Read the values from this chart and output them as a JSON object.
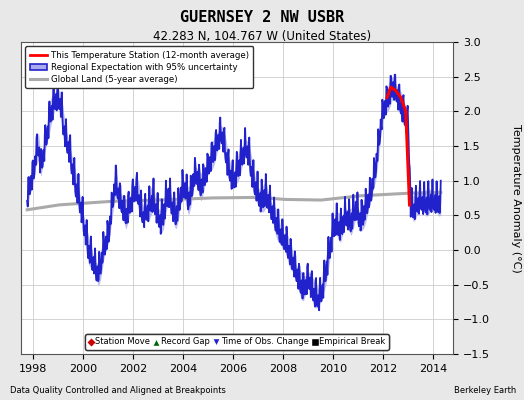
{
  "title": "GUERNSEY 2 NW USBR",
  "subtitle": "42.283 N, 104.767 W (United States)",
  "ylabel": "Temperature Anomaly (°C)",
  "xlabel_footer": "Data Quality Controlled and Aligned at Breakpoints",
  "source_footer": "Berkeley Earth",
  "ylim": [
    -1.5,
    3.0
  ],
  "xlim": [
    1997.5,
    2014.8
  ],
  "xticks": [
    1998,
    2000,
    2002,
    2004,
    2006,
    2008,
    2010,
    2012,
    2014
  ],
  "yticks": [
    -1.5,
    -1.0,
    -0.5,
    0.0,
    0.5,
    1.0,
    1.5,
    2.0,
    2.5,
    3.0
  ],
  "bg_color": "#e8e8e8",
  "plot_bg_color": "#ffffff",
  "grid_color": "#cccccc",
  "regional_color": "#2222cc",
  "regional_fill_color": "#aaaaee",
  "global_color": "#aaaaaa",
  "station_color": "#ff0000"
}
